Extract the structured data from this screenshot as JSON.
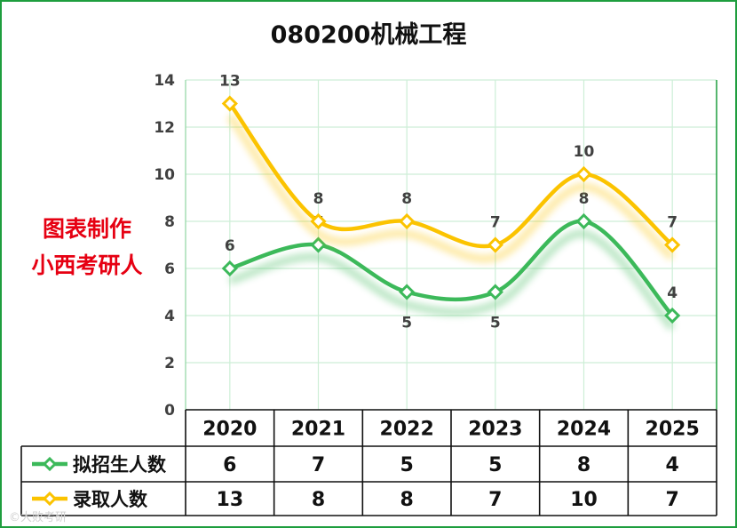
{
  "chart_data": {
    "type": "line",
    "title": "080200机械工程",
    "categories": [
      "2020",
      "2021",
      "2022",
      "2023",
      "2024",
      "2025"
    ],
    "ylim": [
      0,
      14
    ],
    "yticks": [
      0,
      2,
      4,
      6,
      8,
      10,
      12,
      14
    ],
    "grid": true,
    "legend_position": "data-table",
    "series": [
      {
        "name": "拟招生人数",
        "values": [
          6,
          7,
          5,
          5,
          8,
          4
        ],
        "color": "#3cb95a"
      },
      {
        "name": "录取人数",
        "values": [
          13,
          8,
          8,
          7,
          10,
          7
        ],
        "color": "#fbc300"
      }
    ]
  },
  "watermark": {
    "line1": "图表制作",
    "line2": "小西考研人",
    "color": "#e60012"
  },
  "footer_text": "©大败考研"
}
